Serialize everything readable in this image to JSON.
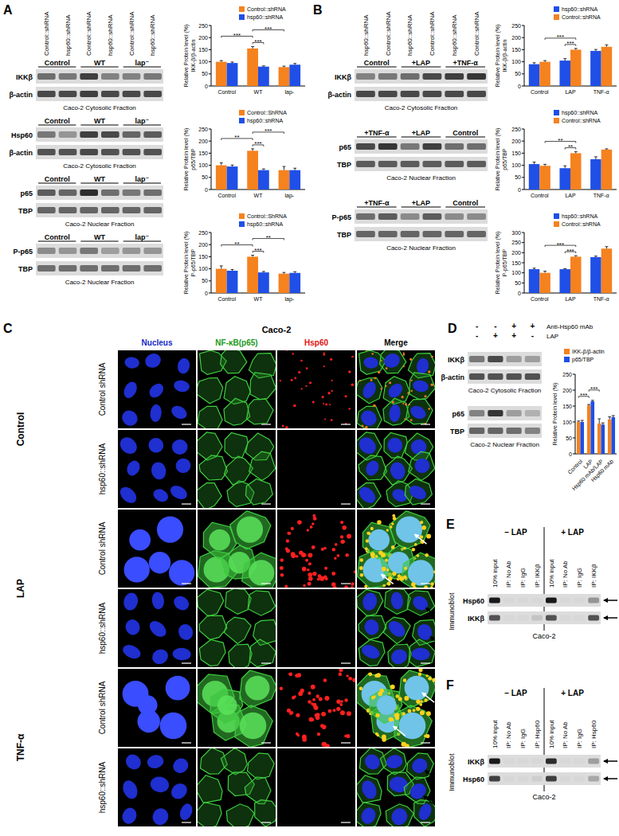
{
  "panel_labels": [
    "A",
    "B",
    "C",
    "D",
    "E",
    "F"
  ],
  "chart_data": [
    {
      "type": "bar",
      "y_label": [
        "Relative Protein level (%)",
        "IKK-β/β-actin"
      ],
      "categories": [
        "Control",
        "WT",
        "lap-"
      ],
      "series": [
        {
          "name": "Control::shRNA",
          "color": "#f5821f",
          "values": [
            100,
            155,
            78
          ],
          "errors": [
            5,
            8,
            4
          ]
        },
        {
          "name": "hsp60::shRNA",
          "color": "#1f4fe6",
          "values": [
            95,
            80,
            88
          ],
          "errors": [
            4,
            3,
            5
          ]
        }
      ],
      "ylim": [
        0,
        250
      ],
      "yticks": [
        0,
        50,
        100,
        150,
        200,
        250
      ],
      "legend": "top",
      "annotations": [
        {
          "text": "***",
          "from": [
            1,
            0
          ],
          "to": [
            1,
            1
          ]
        },
        {
          "text": "***",
          "from": [
            0,
            0
          ],
          "to": [
            1,
            0
          ]
        },
        {
          "text": "***",
          "from": [
            1,
            0
          ],
          "to": [
            2,
            0
          ]
        }
      ]
    },
    {
      "type": "bar",
      "y_label": [
        "Relative Protein level (%)",
        "p65/TBP"
      ],
      "categories": [
        "Control",
        "WT",
        "lap-"
      ],
      "series": [
        {
          "name": "Control::ShRNA",
          "color": "#f5821f",
          "values": [
            100,
            160,
            80
          ],
          "errors": [
            10,
            8,
            15
          ]
        },
        {
          "name": "hsp60::shRNA",
          "color": "#1f4fe6",
          "values": [
            95,
            80,
            80
          ],
          "errors": [
            6,
            5,
            8
          ]
        }
      ],
      "ylim": [
        0,
        250
      ],
      "yticks": [
        0,
        50,
        100,
        150,
        200,
        250
      ],
      "legend": "top",
      "annotations": [
        {
          "text": "***",
          "from": [
            1,
            0
          ],
          "to": [
            1,
            1
          ]
        },
        {
          "text": "**",
          "from": [
            0,
            0
          ],
          "to": [
            1,
            0
          ]
        },
        {
          "text": "***",
          "from": [
            1,
            0
          ],
          "to": [
            2,
            0
          ]
        }
      ]
    },
    {
      "type": "bar",
      "y_label": [
        "Relative Protein level (%)",
        "P-p65/TBP"
      ],
      "categories": [
        "Control",
        "WT",
        "lap-"
      ],
      "series": [
        {
          "name": "Control::ShRNA",
          "color": "#f5821f",
          "values": [
            100,
            150,
            80
          ],
          "errors": [
            12,
            6,
            5
          ]
        },
        {
          "name": "hsp60::shRNA",
          "color": "#1f4fe6",
          "values": [
            92,
            85,
            83
          ],
          "errors": [
            5,
            4,
            5
          ]
        }
      ],
      "ylim": [
        0,
        250
      ],
      "yticks": [
        0,
        50,
        100,
        150,
        200,
        250
      ],
      "legend": "top",
      "annotations": [
        {
          "text": "***",
          "from": [
            1,
            0
          ],
          "to": [
            1,
            1
          ]
        },
        {
          "text": "**",
          "from": [
            0,
            0
          ],
          "to": [
            1,
            0
          ]
        },
        {
          "text": "**",
          "from": [
            1,
            0
          ],
          "to": [
            2,
            0
          ]
        }
      ]
    },
    {
      "type": "bar",
      "y_label": [
        "Relative Protein level (%)",
        "IKK-β/β-actin"
      ],
      "categories": [
        "Control",
        "LAP",
        "TNF-α"
      ],
      "series": [
        {
          "name": "hsp60::shRNA",
          "color": "#1f4fe6",
          "values": [
            90,
            105,
            145
          ],
          "errors": [
            6,
            8,
            6
          ]
        },
        {
          "name": "Control::shRNA",
          "color": "#f5821f",
          "values": [
            100,
            150,
            162
          ],
          "errors": [
            5,
            5,
            8
          ]
        }
      ],
      "ylim": [
        0,
        250
      ],
      "yticks": [
        0,
        50,
        100,
        150,
        200,
        250
      ],
      "legend": "top",
      "annotations": [
        {
          "text": "***",
          "from": [
            1,
            0
          ],
          "to": [
            1,
            1
          ]
        },
        {
          "text": "***",
          "from": [
            0,
            1
          ],
          "to": [
            1,
            1
          ]
        }
      ]
    },
    {
      "type": "bar",
      "y_label": [
        "Relative Protein level (%)",
        "p65/TBP"
      ],
      "categories": [
        "Control",
        "LAP",
        "TNF-α"
      ],
      "series": [
        {
          "name": "hsp60::shRNA",
          "color": "#1f4fe6",
          "values": [
            105,
            88,
            125
          ],
          "errors": [
            8,
            10,
            10
          ]
        },
        {
          "name": "Control::shRNA",
          "color": "#f5821f",
          "values": [
            98,
            150,
            165
          ],
          "errors": [
            6,
            6,
            3
          ]
        }
      ],
      "ylim": [
        0,
        250
      ],
      "yticks": [
        0,
        50,
        100,
        150,
        200,
        250
      ],
      "legend": "top",
      "annotations": [
        {
          "text": "**",
          "from": [
            1,
            0
          ],
          "to": [
            1,
            1
          ]
        },
        {
          "text": "**",
          "from": [
            0,
            1
          ],
          "to": [
            1,
            1
          ]
        }
      ]
    },
    {
      "type": "bar",
      "y_label": [
        "Relative Protein level (%)",
        "P-p65/TBP"
      ],
      "categories": [
        "Control",
        "LAP",
        "TNF-α"
      ],
      "series": [
        {
          "name": "hsp60::shRNA",
          "color": "#1f4fe6",
          "values": [
            118,
            118,
            178
          ],
          "errors": [
            5,
            3,
            5
          ]
        },
        {
          "name": "Control::shRNA",
          "color": "#f5821f",
          "values": [
            100,
            180,
            220
          ],
          "errors": [
            8,
            5,
            10
          ]
        }
      ],
      "ylim": [
        0,
        300
      ],
      "yticks": [
        0,
        50,
        100,
        150,
        200,
        250,
        300
      ],
      "legend": "top",
      "annotations": [
        {
          "text": "***",
          "from": [
            1,
            0
          ],
          "to": [
            1,
            1
          ]
        },
        {
          "text": "***",
          "from": [
            0,
            1
          ],
          "to": [
            1,
            1
          ]
        }
      ]
    },
    {
      "type": "bar",
      "y_label": [
        "Relative Protein level (%)"
      ],
      "categories": [
        "Control",
        "LAP",
        "Hsp60 mAb/LAP",
        "Hsp60 mAb"
      ],
      "series": [
        {
          "name": "IKK-β/β-actin",
          "color": "#f5821f",
          "values": [
            100,
            152,
            95,
            108
          ],
          "errors": [
            3,
            3,
            15,
            8
          ]
        },
        {
          "name": "p65/TBP",
          "color": "#1f4fe6",
          "values": [
            100,
            165,
            92,
            115
          ],
          "errors": [
            5,
            3,
            5,
            5
          ]
        }
      ],
      "ylim": [
        0,
        250
      ],
      "yticks": [
        0,
        50,
        100,
        150,
        200,
        250
      ],
      "legend": "top",
      "annotations": [
        {
          "text": "***",
          "from": [
            0,
            0
          ],
          "to": [
            1,
            0
          ]
        },
        {
          "text": "***",
          "from": [
            1,
            0
          ],
          "to": [
            2,
            0
          ]
        }
      ]
    }
  ],
  "blots": {
    "A": {
      "lanes": [
        "Control::shRNA",
        "hsp60::shRNA",
        "Control::shRNA",
        "hsp60::shRNA",
        "Control::shRNA",
        "hsp60::shRNA"
      ],
      "sections": [
        {
          "groups": [
            "Control",
            "WT",
            "lap⁻"
          ],
          "rows": [
            {
              "label": "IKKβ",
              "bands": [
                0.55,
                0.5,
                0.8,
                0.45,
                0.45,
                0.5
              ]
            },
            {
              "label": "β-actin",
              "bands": [
                0.75,
                0.75,
                0.8,
                0.75,
                0.75,
                0.75
              ]
            }
          ],
          "caption": "Caco-2 Cytosolic Fraction"
        },
        {
          "groups": [
            "Control",
            "WT",
            "lap⁻"
          ],
          "rows": [
            {
              "label": "Hsp60",
              "bands": [
                0.5,
                0.35,
                0.8,
                0.75,
                0.6,
                0.65
              ]
            },
            {
              "label": "β-actin",
              "bands": [
                0.7,
                0.7,
                0.75,
                0.7,
                0.7,
                0.7
              ]
            }
          ],
          "caption": "Caco-2 Cytosolic Fraction"
        },
        {
          "groups": [
            "Control",
            "WT",
            "lap⁻"
          ],
          "rows": [
            {
              "label": "p65",
              "bands": [
                0.65,
                0.6,
                0.9,
                0.55,
                0.5,
                0.55
              ]
            },
            {
              "label": "TBP",
              "bands": [
                0.6,
                0.6,
                0.6,
                0.6,
                0.6,
                0.6
              ]
            }
          ],
          "caption": "Caco-2 Nuclear Fraction"
        },
        {
          "groups": [
            "Control",
            "WT",
            "lap⁻"
          ],
          "rows": [
            {
              "label": "P-p65",
              "bands": [
                0.4,
                0.35,
                0.5,
                0.3,
                0.35,
                0.35
              ]
            },
            {
              "label": "TBP",
              "bands": [
                0.55,
                0.55,
                0.55,
                0.55,
                0.55,
                0.55
              ]
            }
          ],
          "caption": "Caco-2 Nuclear Fraction"
        }
      ]
    },
    "B": {
      "lanes": [
        "hsp60::shRNA",
        "Control::shRNA",
        "hsp60::shRNA",
        "Control::shRNA",
        "hsp60::shRNA",
        "Control::shRNA"
      ],
      "sections": [
        {
          "groups": [
            "Control",
            "+LAP",
            "+TNF-α"
          ],
          "rows": [
            {
              "label": "IKKβ",
              "bands": [
                0.45,
                0.5,
                0.55,
                0.75,
                0.8,
                0.85
              ]
            },
            {
              "label": "β-actin",
              "bands": [
                0.75,
                0.75,
                0.75,
                0.75,
                0.75,
                0.75
              ]
            }
          ],
          "caption": "Caco-2 Cytosolic Fraction"
        },
        {
          "groups": [
            "+TNF-α",
            "+LAP",
            "Control"
          ],
          "rows": [
            {
              "label": "p65",
              "bands": [
                0.75,
                0.85,
                0.5,
                0.8,
                0.55,
                0.55
              ]
            },
            {
              "label": "TBP",
              "bands": [
                0.65,
                0.65,
                0.65,
                0.65,
                0.65,
                0.65
              ]
            }
          ],
          "caption": "Caco-2 Nuclear Fraction"
        },
        {
          "groups": [
            "+TNF-α",
            "+LAP",
            "Control"
          ],
          "rows": [
            {
              "label": "P-p65",
              "bands": [
                0.55,
                0.65,
                0.4,
                0.65,
                0.4,
                0.4
              ]
            },
            {
              "label": "TBP",
              "bands": [
                0.6,
                0.6,
                0.6,
                0.6,
                0.6,
                0.6
              ]
            }
          ],
          "caption": "Caco-2 Nuclear Fraction"
        }
      ]
    },
    "D": {
      "conditions": [
        {
          "label": "Anti-Hsp60 mAb",
          "signs": [
            "-",
            "-",
            "+",
            "+"
          ]
        },
        {
          "label": "LAP",
          "signs": [
            "-",
            "+",
            "+",
            "-"
          ]
        }
      ],
      "sections": [
        {
          "rows": [
            {
              "label": "IKKβ",
              "bands": [
                0.5,
                0.75,
                0.3,
                0.3
              ]
            },
            {
              "label": "β-actin",
              "bands": [
                0.7,
                0.7,
                0.7,
                0.7
              ]
            }
          ],
          "caption": "Caco-2 Cytosolic Fraction"
        },
        {
          "rows": [
            {
              "label": "p65",
              "bands": [
                0.45,
                0.85,
                0.3,
                0.2
              ]
            },
            {
              "label": "TBP",
              "bands": [
                0.6,
                0.6,
                0.55,
                0.45
              ]
            }
          ],
          "caption": "Caco-2 Nuclear Fraction"
        }
      ]
    }
  },
  "microscopy": {
    "title": "Caco-2",
    "columns": [
      "Nucleus",
      "NF-κB(p65)",
      "Hsp60",
      "Merge"
    ],
    "groups": [
      {
        "label": "Control",
        "rows": [
          "Control shRNA",
          "hsp60::shRNA"
        ]
      },
      {
        "label": "LAP",
        "rows": [
          "Control shRNA",
          "hsp60::shRNA"
        ]
      },
      {
        "label": "TNF-α",
        "rows": [
          "Control shRNA",
          "hsp60::shRNA"
        ]
      }
    ]
  },
  "coip": [
    {
      "conditions": [
        "– LAP",
        "+ LAP"
      ],
      "lanes": [
        "10% input",
        "IP: No Ab",
        "IP: IgG",
        "IP: IKKβ"
      ],
      "side_label": "Immunoblot",
      "rows": [
        {
          "label": "Hsp60",
          "bands": [
            1.0,
            0,
            0,
            0,
            1.0,
            0,
            0,
            0.35
          ]
        },
        {
          "label": "IKKβ",
          "bands": [
            0.7,
            0,
            0,
            0.1,
            0.7,
            0,
            0,
            0.7
          ]
        }
      ],
      "caption": "Caco-2"
    },
    {
      "conditions": [
        "– LAP",
        "+ LAP"
      ],
      "lanes": [
        "10% input",
        "IP: No Ab",
        "IP: IgG",
        "IP: Hsp60"
      ],
      "side_label": "Immunoblot",
      "rows": [
        {
          "label": "IKKβ",
          "bands": [
            1.0,
            0,
            0,
            0,
            0.9,
            0,
            0,
            0.3
          ]
        },
        {
          "label": "Hsp60",
          "bands": [
            0.8,
            0,
            0,
            0.05,
            0.8,
            0,
            0,
            0.25
          ]
        }
      ],
      "caption": "Caco-2"
    }
  ]
}
